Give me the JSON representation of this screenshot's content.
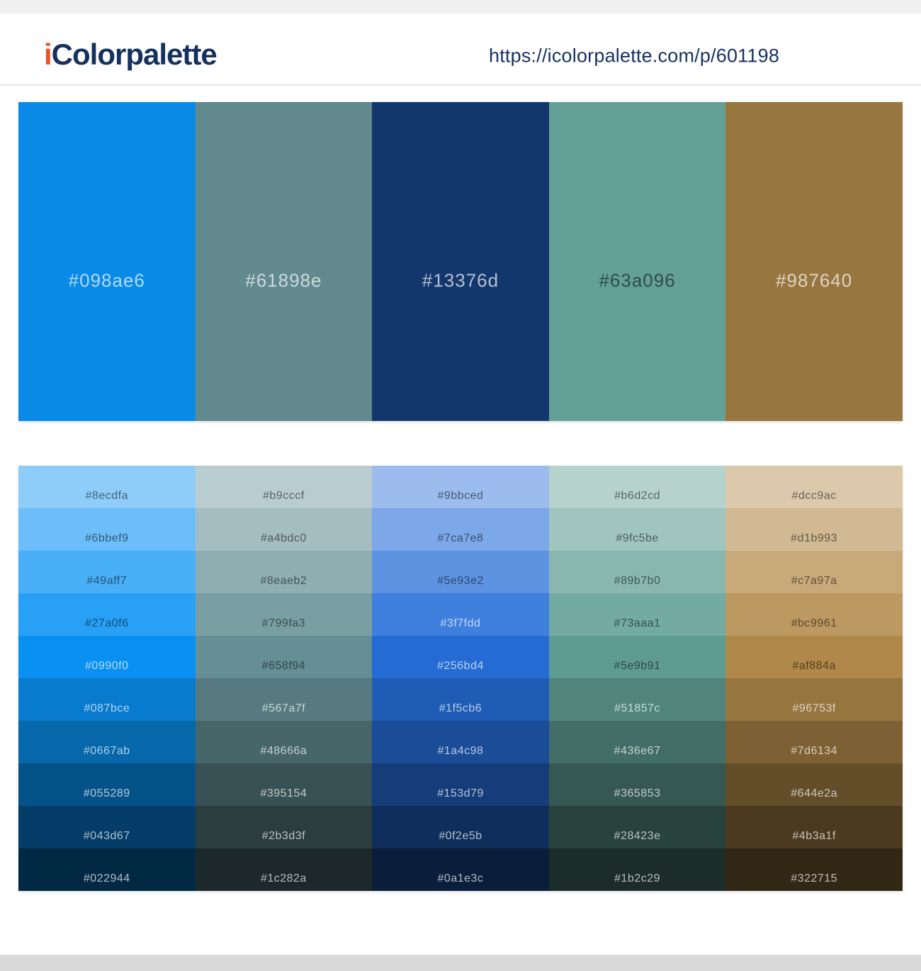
{
  "header": {
    "brand_prefix": "i",
    "brand_rest": "Colorpalette",
    "url": "https://icolorpalette.com/p/601198"
  },
  "palette": {
    "colors": [
      {
        "hex": "#098ae6"
      },
      {
        "hex": "#61898e"
      },
      {
        "hex": "#13376d"
      },
      {
        "hex": "#63a096"
      },
      {
        "hex": "#987640"
      }
    ]
  },
  "shades": {
    "rows": [
      [
        "#8ecdfa",
        "#b9cccf",
        "#9bbced",
        "#b6d2cd",
        "#dcc9ac"
      ],
      [
        "#6bbef9",
        "#a4bdc0",
        "#7ca7e8",
        "#9fc5be",
        "#d1b993"
      ],
      [
        "#49aff7",
        "#8eaeb2",
        "#5e93e2",
        "#89b7b0",
        "#c7a97a"
      ],
      [
        "#27a0f6",
        "#799fa3",
        "#3f7fdd",
        "#73aaa1",
        "#bc9961"
      ],
      [
        "#0990f0",
        "#658f94",
        "#256bd4",
        "#5e9b91",
        "#af884a"
      ],
      [
        "#087bce",
        "#567a7f",
        "#1f5cb6",
        "#51857c",
        "#96753f"
      ],
      [
        "#0667ab",
        "#48666a",
        "#1a4c98",
        "#436e67",
        "#7d6134"
      ],
      [
        "#055289",
        "#395154",
        "#153d79",
        "#365853",
        "#644e2a"
      ],
      [
        "#043d67",
        "#2b3d3f",
        "#0f2e5b",
        "#28423e",
        "#4b3a1f"
      ],
      [
        "#022944",
        "#1c282a",
        "#0a1e3c",
        "#1b2c29",
        "#322715"
      ]
    ]
  },
  "theme": {
    "page_bg": "#ffffff",
    "top_strip": "#f0f0f0",
    "header_border": "#e4e4e4",
    "brand_accent": "#f04f23",
    "brand_navy": "#16315f",
    "bottom_bar": "#d9d9d9"
  }
}
